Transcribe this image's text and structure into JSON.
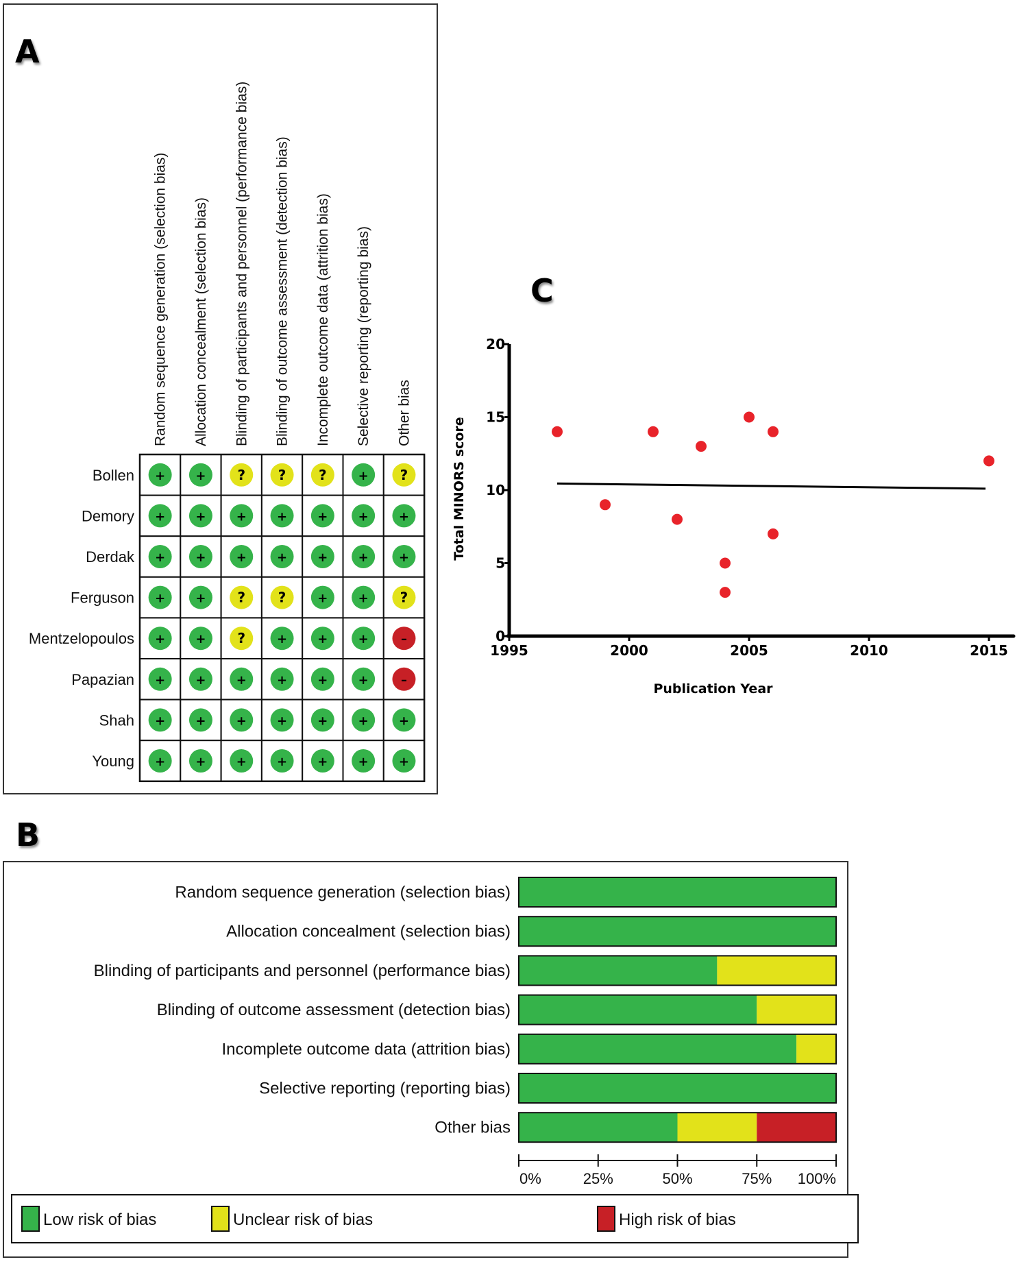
{
  "panels": {
    "a": {
      "letter": "A"
    },
    "b": {
      "letter": "B"
    },
    "c": {
      "letter": "C"
    }
  },
  "colors": {
    "low": "#35b34a",
    "unclear": "#e2e21a",
    "high": "#c72026",
    "scatter_point": "#e8232a",
    "line": "#000000"
  },
  "chart_data": [
    {
      "id": "risk_of_bias_summary",
      "type": "table",
      "title": "",
      "columns": [
        "Random sequence generation (selection bias)",
        "Allocation concealment (selection bias)",
        "Blinding of participants and personnel (performance bias)",
        "Blinding of outcome assessment (detection bias)",
        "Incomplete outcome data (attrition bias)",
        "Selective reporting (reporting bias)",
        "Other bias"
      ],
      "rows": [
        {
          "study": "Bollen",
          "ratings": [
            "low",
            "low",
            "unclear",
            "unclear",
            "unclear",
            "low",
            "unclear"
          ]
        },
        {
          "study": "Demory",
          "ratings": [
            "low",
            "low",
            "low",
            "low",
            "low",
            "low",
            "low"
          ]
        },
        {
          "study": "Derdak",
          "ratings": [
            "low",
            "low",
            "low",
            "low",
            "low",
            "low",
            "low"
          ]
        },
        {
          "study": "Ferguson",
          "ratings": [
            "low",
            "low",
            "unclear",
            "unclear",
            "low",
            "low",
            "unclear"
          ]
        },
        {
          "study": "Mentzelopoulos",
          "ratings": [
            "low",
            "low",
            "unclear",
            "low",
            "low",
            "low",
            "high"
          ]
        },
        {
          "study": "Papazian",
          "ratings": [
            "low",
            "low",
            "low",
            "low",
            "low",
            "low",
            "high"
          ]
        },
        {
          "study": "Shah",
          "ratings": [
            "low",
            "low",
            "low",
            "low",
            "low",
            "low",
            "low"
          ]
        },
        {
          "study": "Young",
          "ratings": [
            "low",
            "low",
            "low",
            "low",
            "low",
            "low",
            "low"
          ]
        }
      ],
      "symbols": {
        "low": "+",
        "unclear": "?",
        "high": "–"
      }
    },
    {
      "id": "risk_of_bias_graph",
      "type": "bar",
      "stacked": true,
      "orientation": "horizontal",
      "categories": [
        "Random sequence generation (selection bias)",
        "Allocation concealment (selection bias)",
        "Blinding of participants and personnel (performance bias)",
        "Blinding of outcome assessment (detection bias)",
        "Incomplete outcome data (attrition bias)",
        "Selective reporting (reporting bias)",
        "Other bias"
      ],
      "series": [
        {
          "name": "Low risk of bias",
          "key": "low",
          "values": [
            100,
            100,
            62.5,
            75,
            87.5,
            100,
            50
          ]
        },
        {
          "name": "Unclear risk of bias",
          "key": "unclear",
          "values": [
            0,
            0,
            37.5,
            25,
            12.5,
            0,
            25
          ]
        },
        {
          "name": "High risk of bias",
          "key": "high",
          "values": [
            0,
            0,
            0,
            0,
            0,
            0,
            25
          ]
        }
      ],
      "xlim": [
        0,
        100
      ],
      "xticks": [
        "0%",
        "25%",
        "50%",
        "75%",
        "100%"
      ],
      "legend": {
        "placement": "bottom",
        "entries": [
          "Low risk of bias",
          "Unclear risk of bias",
          "High risk of bias"
        ]
      }
    },
    {
      "id": "minors_vs_year",
      "type": "scatter",
      "title": "",
      "xlabel": "Publication Year",
      "ylabel": "Total MINORS score",
      "xlim": [
        1995,
        2016
      ],
      "ylim": [
        0,
        20
      ],
      "xticks": [
        1995,
        2000,
        2005,
        2010,
        2015
      ],
      "yticks": [
        0,
        5,
        10,
        15,
        20
      ],
      "points": [
        {
          "x": 1997,
          "y": 14
        },
        {
          "x": 1999,
          "y": 9
        },
        {
          "x": 2001,
          "y": 14
        },
        {
          "x": 2002,
          "y": 8
        },
        {
          "x": 2003,
          "y": 13
        },
        {
          "x": 2004,
          "y": 5
        },
        {
          "x": 2004,
          "y": 3
        },
        {
          "x": 2005,
          "y": 15
        },
        {
          "x": 2006,
          "y": 14
        },
        {
          "x": 2006,
          "y": 7
        },
        {
          "x": 2015,
          "y": 12
        }
      ],
      "trendline": {
        "x": [
          1997,
          2015
        ],
        "y": [
          10.45,
          10.1
        ]
      }
    }
  ]
}
